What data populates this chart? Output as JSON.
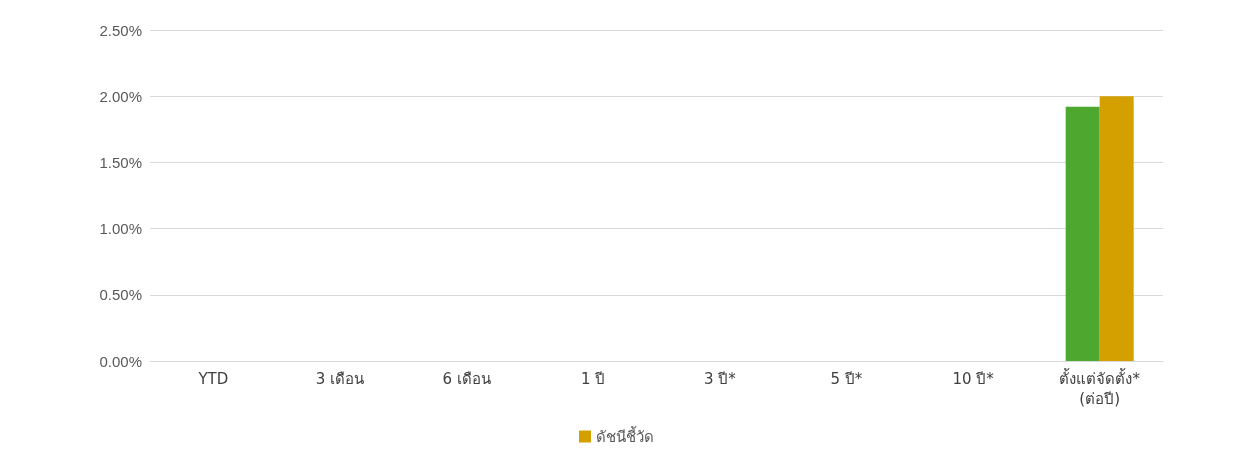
{
  "chart_data": {
    "type": "bar",
    "categories": [
      "YTD",
      "3 เดือน",
      "6 เดือน",
      "1 ปี",
      "3 ปี*",
      "5 ปี*",
      "10 ปี*",
      "ตั้งแต่จัดตั้ง*\n(ต่อปี)"
    ],
    "series": [
      {
        "color": "#4ea72e",
        "values": [
          0,
          0,
          0,
          0,
          0,
          0,
          0,
          1.92
        ]
      },
      {
        "name": "ดัชนีชี้วัด",
        "color": "#d4a000",
        "values": [
          0,
          0,
          0,
          0,
          0,
          0,
          0,
          2.0
        ]
      }
    ],
    "ylim": [
      0,
      2.5
    ],
    "yticks": [
      {
        "value": 0,
        "label": "0.00%"
      },
      {
        "value": 0.5,
        "label": "0.50%"
      },
      {
        "value": 1,
        "label": "1.00%"
      },
      {
        "value": 1.5,
        "label": "1.50%"
      },
      {
        "value": 2,
        "label": "2.00%"
      },
      {
        "value": 2.5,
        "label": "2.50%"
      }
    ],
    "grid": "y",
    "legend": "bottom"
  }
}
